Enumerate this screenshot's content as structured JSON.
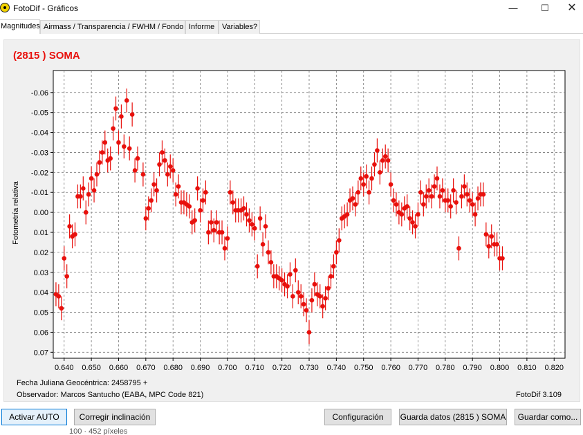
{
  "window": {
    "title": "FotoDif - Gráficos",
    "minimize_glyph": "—",
    "maximize_glyph": "☐",
    "close_glyph": "✕"
  },
  "tabs": [
    {
      "label": "Magnitudes",
      "active": true
    },
    {
      "label": "Airmass / Transparencia / FWHM / Fondo",
      "active": false
    },
    {
      "label": "Informe",
      "active": false
    },
    {
      "label": "Variables?",
      "active": false
    }
  ],
  "chart_data": {
    "type": "scatter",
    "title": "(2815 ) SOMA",
    "title_color": "#e8100c",
    "point_color": "#e8100c",
    "ylabel": "Fotometría relativa",
    "xlim": [
      0.636,
      0.824
    ],
    "ylim": [
      -0.071,
      0.073
    ],
    "y_inverted": true,
    "grid": true,
    "x_ticks": [
      "0.640",
      "0.650",
      "0.660",
      "0.670",
      "0.680",
      "0.690",
      "0.700",
      "0.710",
      "0.720",
      "0.730",
      "0.740",
      "0.750",
      "0.760",
      "0.770",
      "0.780",
      "0.790",
      "0.800",
      "0.810",
      "0.820"
    ],
    "y_ticks": [
      "-0.06",
      "-0.05",
      "-0.04",
      "-0.03",
      "-0.02",
      "-0.01",
      "0.00",
      "0.01",
      "0.02",
      "0.03",
      "0.04",
      "0.05",
      "0.06",
      "0.07"
    ],
    "x_tick_values": [
      0.64,
      0.65,
      0.66,
      0.67,
      0.68,
      0.69,
      0.7,
      0.71,
      0.72,
      0.73,
      0.74,
      0.75,
      0.76,
      0.77,
      0.78,
      0.79,
      0.8,
      0.81,
      0.82
    ],
    "y_tick_values": [
      -0.06,
      -0.05,
      -0.04,
      -0.03,
      -0.02,
      -0.01,
      0.0,
      0.01,
      0.02,
      0.03,
      0.04,
      0.05,
      0.06,
      0.07
    ],
    "error_bar": 0.006,
    "points": [
      [
        0.637,
        0.041
      ],
      [
        0.638,
        0.042
      ],
      [
        0.639,
        0.048
      ],
      [
        0.64,
        0.023
      ],
      [
        0.641,
        0.032
      ],
      [
        0.642,
        0.007
      ],
      [
        0.643,
        0.012
      ],
      [
        0.644,
        0.011
      ],
      [
        0.645,
        -0.008
      ],
      [
        0.646,
        -0.008
      ],
      [
        0.647,
        -0.012
      ],
      [
        0.648,
        0.0
      ],
      [
        0.649,
        -0.009
      ],
      [
        0.65,
        -0.017
      ],
      [
        0.651,
        -0.011
      ],
      [
        0.652,
        -0.019
      ],
      [
        0.653,
        -0.025
      ],
      [
        0.654,
        -0.03
      ],
      [
        0.655,
        -0.035
      ],
      [
        0.656,
        -0.026
      ],
      [
        0.657,
        -0.027
      ],
      [
        0.658,
        -0.042
      ],
      [
        0.659,
        -0.052
      ],
      [
        0.66,
        -0.035
      ],
      [
        0.661,
        -0.048
      ],
      [
        0.662,
        -0.033
      ],
      [
        0.663,
        -0.056
      ],
      [
        0.664,
        -0.032
      ],
      [
        0.665,
        -0.049
      ],
      [
        0.666,
        -0.021
      ],
      [
        0.667,
        -0.027
      ],
      [
        0.669,
        -0.019
      ],
      [
        0.67,
        0.003
      ],
      [
        0.671,
        -0.002
      ],
      [
        0.672,
        -0.006
      ],
      [
        0.673,
        -0.014
      ],
      [
        0.674,
        -0.011
      ],
      [
        0.675,
        -0.024
      ],
      [
        0.676,
        -0.03
      ],
      [
        0.677,
        -0.026
      ],
      [
        0.678,
        -0.019
      ],
      [
        0.679,
        -0.023
      ],
      [
        0.68,
        -0.021
      ],
      [
        0.681,
        -0.009
      ],
      [
        0.682,
        -0.013
      ],
      [
        0.683,
        -0.005
      ],
      [
        0.684,
        -0.005
      ],
      [
        0.685,
        -0.004
      ],
      [
        0.686,
        -0.003
      ],
      [
        0.687,
        0.005
      ],
      [
        0.688,
        0.004
      ],
      [
        0.689,
        -0.012
      ],
      [
        0.69,
        -0.001
      ],
      [
        0.691,
        -0.006
      ],
      [
        0.692,
        -0.01
      ],
      [
        0.693,
        0.01
      ],
      [
        0.694,
        0.005
      ],
      [
        0.695,
        0.009
      ],
      [
        0.696,
        0.005
      ],
      [
        0.697,
        0.01
      ],
      [
        0.698,
        0.01
      ],
      [
        0.699,
        0.018
      ],
      [
        0.7,
        0.013
      ],
      [
        0.701,
        -0.01
      ],
      [
        0.702,
        -0.005
      ],
      [
        0.703,
        -0.001
      ],
      [
        0.704,
        -0.001
      ],
      [
        0.705,
        -0.001
      ],
      [
        0.706,
        -0.002
      ],
      [
        0.707,
        0.001
      ],
      [
        0.708,
        0.004
      ],
      [
        0.709,
        0.006
      ],
      [
        0.71,
        0.008
      ],
      [
        0.711,
        0.027
      ],
      [
        0.712,
        0.003
      ],
      [
        0.713,
        0.016
      ],
      [
        0.714,
        0.007
      ],
      [
        0.715,
        0.02
      ],
      [
        0.716,
        0.025
      ],
      [
        0.717,
        0.032
      ],
      [
        0.718,
        0.032
      ],
      [
        0.719,
        0.033
      ],
      [
        0.72,
        0.034
      ],
      [
        0.721,
        0.036
      ],
      [
        0.722,
        0.037
      ],
      [
        0.723,
        0.031
      ],
      [
        0.724,
        0.042
      ],
      [
        0.725,
        0.029
      ],
      [
        0.726,
        0.04
      ],
      [
        0.727,
        0.042
      ],
      [
        0.728,
        0.046
      ],
      [
        0.729,
        0.049
      ],
      [
        0.73,
        0.06
      ],
      [
        0.731,
        0.044
      ],
      [
        0.732,
        0.036
      ],
      [
        0.733,
        0.041
      ],
      [
        0.734,
        0.042
      ],
      [
        0.735,
        0.047
      ],
      [
        0.736,
        0.043
      ],
      [
        0.737,
        0.038
      ],
      [
        0.738,
        0.032
      ],
      [
        0.739,
        0.027
      ],
      [
        0.74,
        0.02
      ],
      [
        0.741,
        0.014
      ],
      [
        0.742,
        0.003
      ],
      [
        0.743,
        0.002
      ],
      [
        0.744,
        0.001
      ],
      [
        0.745,
        -0.006
      ],
      [
        0.746,
        -0.007
      ],
      [
        0.747,
        -0.004
      ],
      [
        0.748,
        -0.01
      ],
      [
        0.749,
        -0.017
      ],
      [
        0.75,
        -0.014
      ],
      [
        0.751,
        -0.018
      ],
      [
        0.752,
        -0.01
      ],
      [
        0.753,
        -0.017
      ],
      [
        0.754,
        -0.024
      ],
      [
        0.755,
        -0.031
      ],
      [
        0.756,
        -0.02
      ],
      [
        0.757,
        -0.026
      ],
      [
        0.758,
        -0.028
      ],
      [
        0.759,
        -0.026
      ],
      [
        0.76,
        -0.014
      ],
      [
        0.761,
        -0.006
      ],
      [
        0.762,
        -0.004
      ],
      [
        0.763,
        0.0
      ],
      [
        0.764,
        0.001
      ],
      [
        0.765,
        -0.002
      ],
      [
        0.766,
        -0.003
      ],
      [
        0.767,
        0.003
      ],
      [
        0.768,
        0.005
      ],
      [
        0.769,
        0.007
      ],
      [
        0.77,
        0.001
      ],
      [
        0.771,
        -0.01
      ],
      [
        0.772,
        -0.004
      ],
      [
        0.773,
        -0.008
      ],
      [
        0.774,
        -0.011
      ],
      [
        0.775,
        -0.008
      ],
      [
        0.776,
        -0.013
      ],
      [
        0.777,
        -0.017
      ],
      [
        0.778,
        -0.008
      ],
      [
        0.779,
        -0.011
      ],
      [
        0.78,
        -0.006
      ],
      [
        0.781,
        -0.006
      ],
      [
        0.782,
        -0.003
      ],
      [
        0.783,
        -0.011
      ],
      [
        0.784,
        -0.005
      ],
      [
        0.785,
        0.018
      ],
      [
        0.786,
        -0.008
      ],
      [
        0.787,
        -0.013
      ],
      [
        0.788,
        -0.009
      ],
      [
        0.789,
        -0.006
      ],
      [
        0.79,
        -0.004
      ],
      [
        0.791,
        0.001
      ],
      [
        0.792,
        -0.007
      ],
      [
        0.793,
        -0.009
      ],
      [
        0.794,
        -0.009
      ],
      [
        0.795,
        0.011
      ],
      [
        0.796,
        0.017
      ],
      [
        0.797,
        0.012
      ],
      [
        0.798,
        0.016
      ],
      [
        0.799,
        0.016
      ],
      [
        0.8,
        0.023
      ],
      [
        0.801,
        0.023
      ]
    ]
  },
  "footer": {
    "jd_label": "Fecha Juliana Geocéntrica: 2458795 +",
    "observer": "Observador: Marcos Santucho (EABA, MPC Code 821)",
    "version": "FotoDif 3.109"
  },
  "buttons": {
    "activar_auto": "Activar AUTO",
    "corregir": "Corregir inclinación",
    "configuracion": "Configuración",
    "guarda_datos": "Guarda datos (2815 ) SOMA",
    "guardar_como": "Guardar como..."
  },
  "behind_window_text": "100 · 452 píxeles"
}
